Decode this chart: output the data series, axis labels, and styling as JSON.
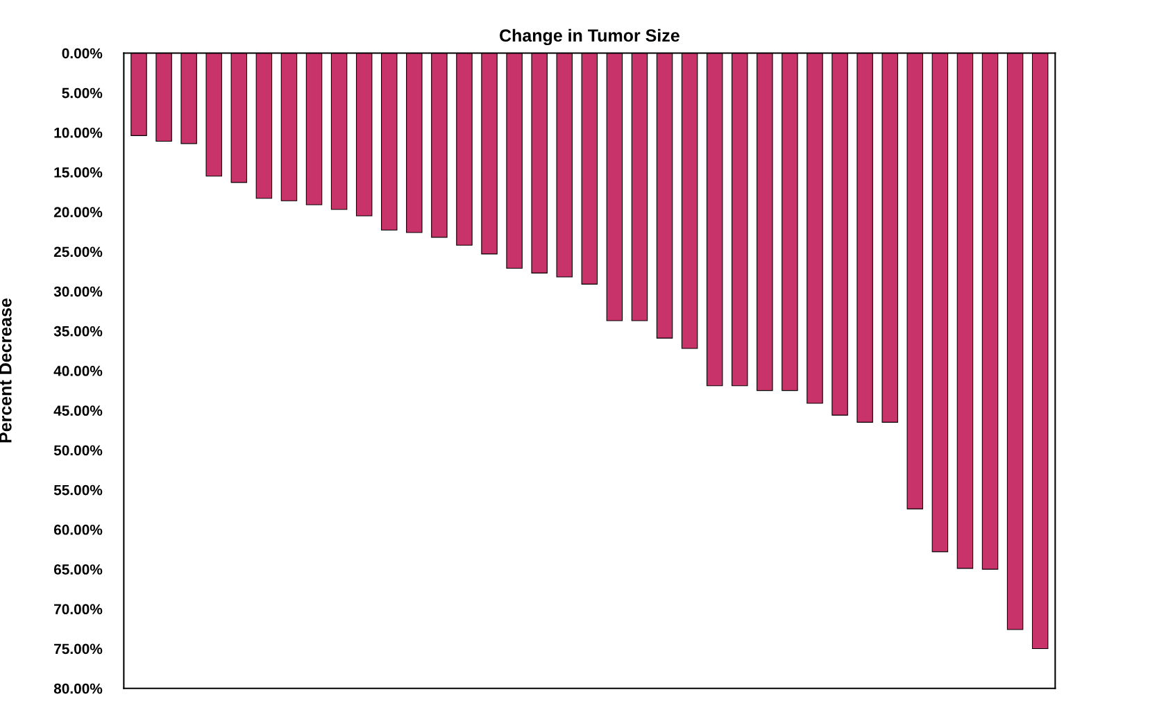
{
  "chart_data": {
    "type": "bar",
    "title": "Change in Tumor Size",
    "ylabel": "Percent Decrease",
    "categories": [
      null,
      null,
      null,
      null,
      null,
      null,
      null,
      null,
      null,
      null,
      null,
      null,
      null,
      null,
      null,
      null,
      null,
      null,
      null,
      null,
      null,
      null,
      null,
      null,
      null,
      null,
      null,
      null,
      null,
      null,
      null,
      null,
      null,
      null,
      null,
      null,
      null
    ],
    "values": [
      10.4,
      11.1,
      11.4,
      15.5,
      16.3,
      18.3,
      18.6,
      19.1,
      19.7,
      20.5,
      22.3,
      22.6,
      23.2,
      24.2,
      25.3,
      27.1,
      27.7,
      28.2,
      29.1,
      33.7,
      33.7,
      35.9,
      37.2,
      41.9,
      41.9,
      42.5,
      42.5,
      44.1,
      45.6,
      46.5,
      46.5,
      57.4,
      62.8,
      64.9,
      65.0,
      72.6,
      75.0
    ],
    "color": "#c8336a",
    "ylim": [
      80,
      0
    ],
    "yticks": [
      {
        "value": 0,
        "label": "0.00%"
      },
      {
        "value": 5,
        "label": "5.00%"
      },
      {
        "value": 10,
        "label": "10.00%"
      },
      {
        "value": 15,
        "label": "15.00%"
      },
      {
        "value": 20,
        "label": "20.00%"
      },
      {
        "value": 25,
        "label": "25.00%"
      },
      {
        "value": 30,
        "label": "30.00%"
      },
      {
        "value": 35,
        "label": "35.00%"
      },
      {
        "value": 40,
        "label": "40.00%"
      },
      {
        "value": 45,
        "label": "45.00%"
      },
      {
        "value": 50,
        "label": "50.00%"
      },
      {
        "value": 55,
        "label": "55.00%"
      },
      {
        "value": 60,
        "label": "60.00%"
      },
      {
        "value": 65,
        "label": "65.00%"
      },
      {
        "value": 70,
        "label": "70.00%"
      },
      {
        "value": 75,
        "label": "75.00%"
      },
      {
        "value": 80,
        "label": "80.00%"
      }
    ],
    "grid": false
  }
}
